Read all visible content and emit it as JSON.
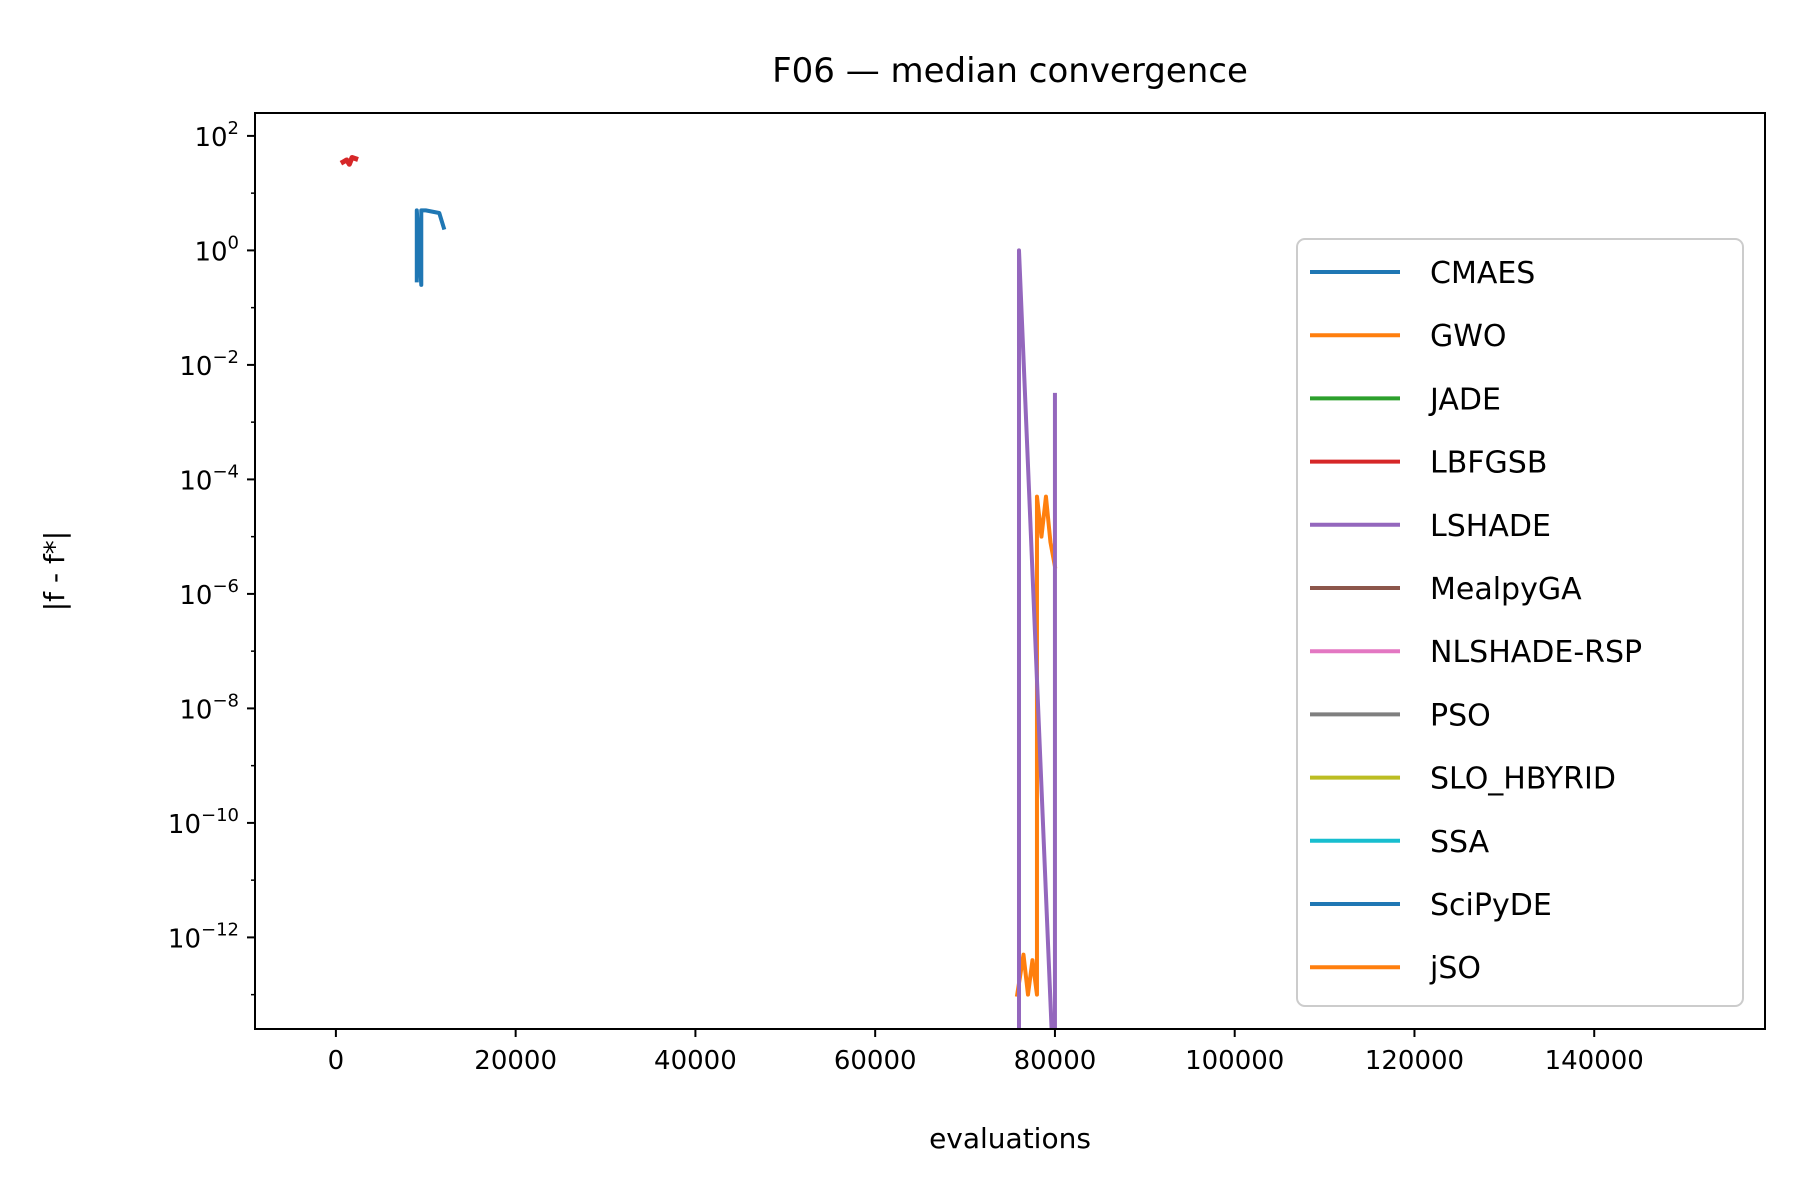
{
  "chart_data": {
    "type": "line",
    "title": "F06 — median convergence",
    "xlabel": "evaluations",
    "ylabel": "|f - f*|",
    "xscale": "linear",
    "yscale": "log",
    "xlim": [
      -9000,
      159000
    ],
    "ylim_exponent": [
      -13.6,
      2.4
    ],
    "x_ticks": [
      0,
      20000,
      40000,
      60000,
      80000,
      100000,
      120000,
      140000
    ],
    "y_ticks": [
      {
        "exp": 2,
        "base": "10",
        "sup": "2"
      },
      {
        "exp": 0,
        "base": "10",
        "sup": "0"
      },
      {
        "exp": -2,
        "base": "10",
        "sup": "−2"
      },
      {
        "exp": -4,
        "base": "10",
        "sup": "−4"
      },
      {
        "exp": -6,
        "base": "10",
        "sup": "−6"
      },
      {
        "exp": -8,
        "base": "10",
        "sup": "−8"
      },
      {
        "exp": -10,
        "base": "10",
        "sup": "−10"
      },
      {
        "exp": -12,
        "base": "10",
        "sup": "−12"
      }
    ],
    "grid": false,
    "legend_position": "right",
    "series": [
      {
        "name": "CMAES",
        "color": "#1f77b4",
        "width": 4,
        "points": [
          [
            9000,
            0.3
          ],
          [
            9000,
            5.0
          ],
          [
            9500,
            0.25
          ],
          [
            9500,
            5.0
          ],
          [
            10000,
            5.0
          ],
          [
            11500,
            4.5
          ],
          [
            12000,
            2.5
          ]
        ]
      },
      {
        "name": "GWO",
        "color": "#ff7f0e",
        "width": 4,
        "points": [
          [
            75800,
            1e-13
          ],
          [
            76500,
            5e-13
          ],
          [
            77000,
            1e-13
          ],
          [
            77500,
            4e-13
          ],
          [
            78000,
            1e-13
          ],
          [
            78000,
            5e-05
          ],
          [
            78500,
            1e-05
          ],
          [
            79000,
            5e-05
          ],
          [
            79500,
            8e-06
          ],
          [
            80000,
            3e-06
          ]
        ]
      },
      {
        "name": "JADE",
        "color": "#2ca02c",
        "width": 4,
        "points": []
      },
      {
        "name": "LBFGSB",
        "color": "#d62728",
        "width": 5,
        "points": [
          [
            800,
            35
          ],
          [
            1200,
            38
          ],
          [
            1500,
            32
          ],
          [
            1800,
            42
          ],
          [
            2200,
            40
          ]
        ]
      },
      {
        "name": "LSHADE",
        "color": "#9467bd",
        "width": 4,
        "points": [
          [
            76000,
            1e-15
          ],
          [
            76000,
            1.0
          ],
          [
            80000,
            1e-15
          ],
          [
            80000,
            0.003
          ]
        ]
      },
      {
        "name": "MealpyGA",
        "color": "#8c564b",
        "width": 4,
        "points": []
      },
      {
        "name": "NLSHADE-RSP",
        "color": "#e377c2",
        "width": 4,
        "points": []
      },
      {
        "name": "PSO",
        "color": "#7f7f7f",
        "width": 4,
        "points": []
      },
      {
        "name": "SLO_HBYRID",
        "color": "#bcbd22",
        "width": 4,
        "points": []
      },
      {
        "name": "SSA",
        "color": "#17becf",
        "width": 4,
        "points": []
      },
      {
        "name": "SciPyDE",
        "color": "#1f77b4",
        "width": 4,
        "points": []
      },
      {
        "name": "jSO",
        "color": "#ff7f0e",
        "width": 4,
        "points": []
      }
    ]
  }
}
